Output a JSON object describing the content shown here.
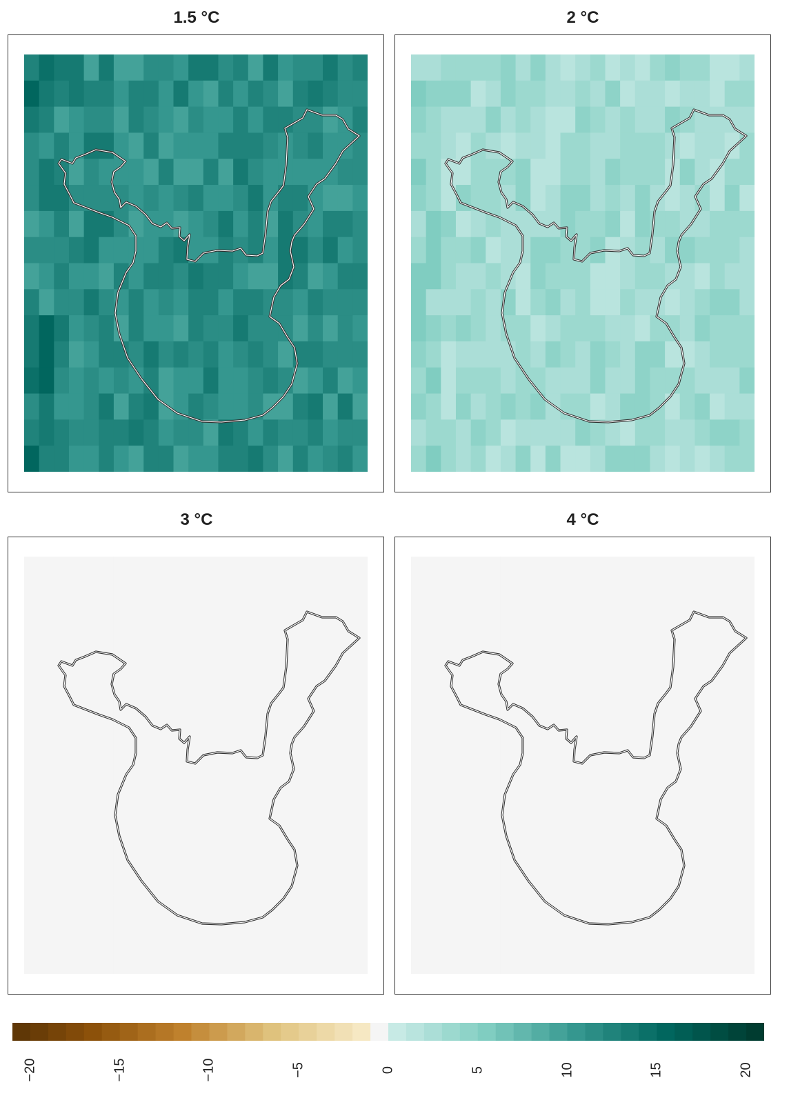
{
  "panels": [
    {
      "title": "1.5 °C",
      "base": 12,
      "pattern": "p15"
    },
    {
      "title": "2 °C",
      "base": 3,
      "pattern": "p2"
    },
    {
      "title": "3 °C",
      "base": 0,
      "pattern": "none"
    },
    {
      "title": "4 °C",
      "base": 0,
      "pattern": "none"
    }
  ],
  "colorbar": {
    "ticks": [
      "−20",
      "−15",
      "−10",
      "−5",
      "0",
      "5",
      "10",
      "15",
      "20"
    ],
    "min": -21,
    "max": 21,
    "zero_color": "#f5f5f5",
    "neg_colors": [
      "#543005",
      "#8c510a",
      "#bf812d",
      "#dfc27d",
      "#f6e8c3"
    ],
    "pos_colors": [
      "#c7eae5",
      "#80cdc1",
      "#35978f",
      "#01665e",
      "#003c30"
    ]
  }
}
